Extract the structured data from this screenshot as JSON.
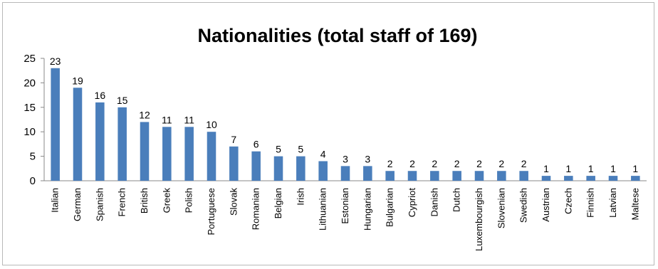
{
  "chart_data": {
    "type": "bar",
    "title": "Nationalities (total staff of 169)",
    "xlabel": "",
    "ylabel": "",
    "ylim": [
      0,
      25
    ],
    "yticks": [
      0,
      5,
      10,
      15,
      20,
      25
    ],
    "grid": false,
    "legend": "none",
    "bar_color": "#4a7ebb",
    "categories": [
      "Italian",
      "German",
      "Spanish",
      "French",
      "British",
      "Greek",
      "Polish",
      "Portuguese",
      "Slovak",
      "Romanian",
      "Belgian",
      "Irish",
      "Lithuanian",
      "Estonian",
      "Hungarian",
      "Bulgarian",
      "Cypriot",
      "Danish",
      "Dutch",
      "Luxembourgish",
      "Slovenian",
      "Swedish",
      "Austrian",
      "Czech",
      "Finnish",
      "Latvian",
      "Maltese"
    ],
    "values": [
      23,
      19,
      16,
      15,
      12,
      11,
      11,
      10,
      7,
      6,
      5,
      5,
      4,
      3,
      3,
      2,
      2,
      2,
      2,
      2,
      2,
      2,
      1,
      1,
      1,
      1,
      1
    ]
  }
}
